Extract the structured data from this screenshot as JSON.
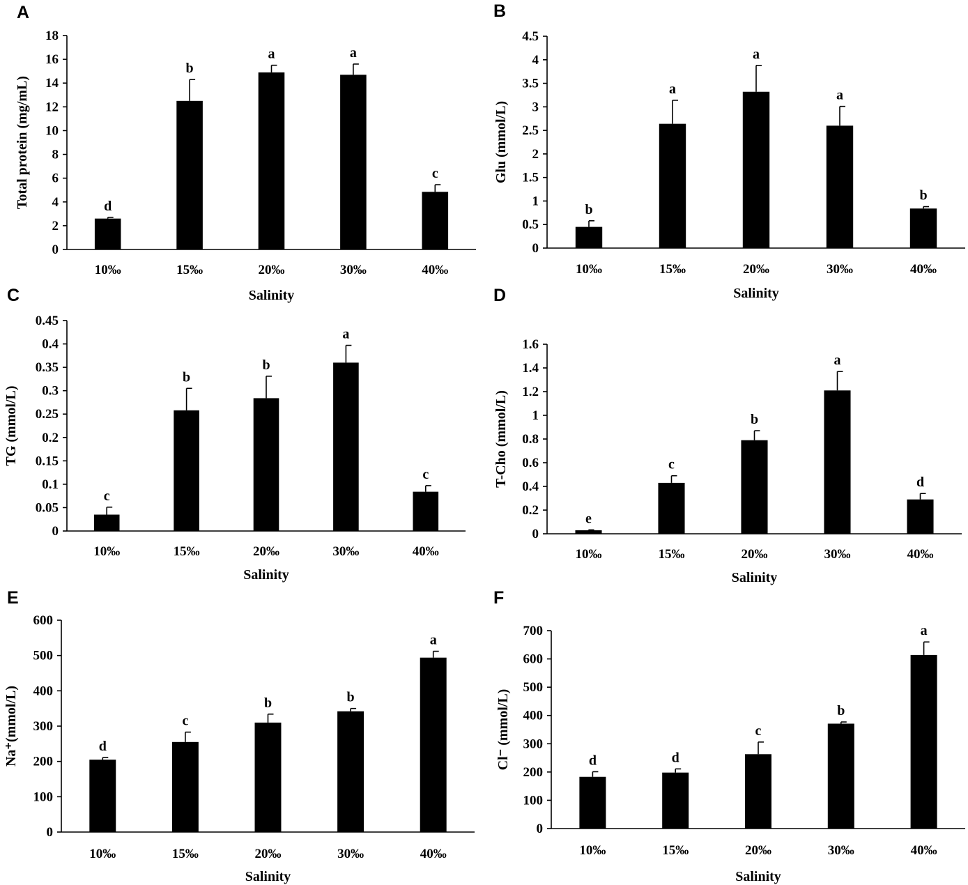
{
  "chart_data": [
    {
      "type": "bar",
      "panel": "A",
      "categories": [
        "10‰",
        "15‰",
        "20‰",
        "30‰",
        "40‰"
      ],
      "values": [
        2.6,
        12.5,
        14.9,
        14.7,
        4.85
      ],
      "errors": [
        0.1,
        1.8,
        0.6,
        0.9,
        0.6
      ],
      "significance": [
        "d",
        "b",
        "a",
        "a",
        "c"
      ],
      "xlabel": "Salinity",
      "ylabel": "Total protein (mg/mL)",
      "ylim": [
        0,
        18
      ],
      "yticks": [
        0,
        2,
        4,
        6,
        8,
        10,
        12,
        14,
        16,
        18
      ],
      "ytick_labels": [
        "0",
        "2",
        "4",
        "6",
        "8",
        "10",
        "12",
        "14",
        "16",
        "18"
      ]
    },
    {
      "type": "bar",
      "panel": "B",
      "categories": [
        "10‰",
        "15‰",
        "20‰",
        "30‰",
        "40‰"
      ],
      "values": [
        0.45,
        2.64,
        3.32,
        2.6,
        0.84
      ],
      "errors": [
        0.13,
        0.5,
        0.56,
        0.41,
        0.04
      ],
      "significance": [
        "b",
        "a",
        "a",
        "a",
        "b"
      ],
      "xlabel": "Salinity",
      "ylabel": "Glu (mmol/L)",
      "ylim": [
        0,
        4.5
      ],
      "yticks": [
        0,
        0.5,
        1,
        1.5,
        2,
        2.5,
        3,
        3.5,
        4,
        4.5
      ],
      "ytick_labels": [
        "0",
        "0.5",
        "1",
        "1.5",
        "2",
        "2.5",
        "3",
        "3.5",
        "4",
        "4.5"
      ]
    },
    {
      "type": "bar",
      "panel": "C",
      "categories": [
        "10‰",
        "15‰",
        "20‰",
        "30‰",
        "40‰"
      ],
      "values": [
        0.035,
        0.258,
        0.284,
        0.36,
        0.084
      ],
      "errors": [
        0.016,
        0.047,
        0.047,
        0.037,
        0.013
      ],
      "significance": [
        "c",
        "b",
        "b",
        "a",
        "c"
      ],
      "xlabel": "Salinity",
      "ylabel": "TG (mmol/L)",
      "ylim": [
        0,
        0.45
      ],
      "yticks": [
        0,
        0.05,
        0.1,
        0.15,
        0.2,
        0.25,
        0.3,
        0.35,
        0.4,
        0.45
      ],
      "ytick_labels": [
        "0",
        "0.05",
        "0.1",
        "0.15",
        "0.2",
        "0.25",
        "0.3",
        "0.35",
        "0.4",
        "0.45"
      ]
    },
    {
      "type": "bar",
      "panel": "D",
      "categories": [
        "10‰",
        "15‰",
        "20‰",
        "30‰",
        "40‰"
      ],
      "values": [
        0.03,
        0.43,
        0.79,
        1.21,
        0.29
      ],
      "errors": [
        0.003,
        0.06,
        0.08,
        0.16,
        0.05
      ],
      "significance": [
        "e",
        "c",
        "b",
        "a",
        "d"
      ],
      "xlabel": "Salinity",
      "ylabel": "T-Cho (mmol/L)",
      "ylim": [
        0,
        1.6
      ],
      "yticks": [
        0,
        0.2,
        0.4,
        0.6,
        0.8,
        1,
        1.2,
        1.4,
        1.6
      ],
      "ytick_labels": [
        "0",
        "0.2",
        "0.4",
        "0.6",
        "0.8",
        "1",
        "1.2",
        "1.4",
        "1.6"
      ]
    },
    {
      "type": "bar",
      "panel": "E",
      "categories": [
        "10‰",
        "15‰",
        "20‰",
        "30‰",
        "40‰"
      ],
      "values": [
        205,
        255,
        310,
        342,
        494
      ],
      "errors": [
        6,
        28,
        24,
        8,
        18
      ],
      "significance": [
        "d",
        "c",
        "b",
        "b",
        "a"
      ],
      "xlabel": "Salinity",
      "ylabel": "Na⁺(mmol/L)",
      "ylim": [
        0,
        600
      ],
      "yticks": [
        0,
        100,
        200,
        300,
        400,
        500,
        600
      ],
      "ytick_labels": [
        "0",
        "100",
        "200",
        "300",
        "400",
        "500",
        "600"
      ]
    },
    {
      "type": "bar",
      "panel": "F",
      "categories": [
        "10‰",
        "15‰",
        "20‰",
        "30‰",
        "40‰"
      ],
      "values": [
        183,
        198,
        263,
        371,
        614
      ],
      "errors": [
        18,
        13,
        43,
        6,
        46
      ],
      "significance": [
        "d",
        "d",
        "c",
        "b",
        "a"
      ],
      "xlabel": "Salinity",
      "ylabel": "Cl⁻ (mmol/L)",
      "ylim": [
        0,
        700
      ],
      "yticks": [
        0,
        100,
        200,
        300,
        400,
        500,
        600,
        700
      ],
      "ytick_labels": [
        "0",
        "100",
        "200",
        "300",
        "400",
        "500",
        "600",
        "700"
      ]
    }
  ]
}
